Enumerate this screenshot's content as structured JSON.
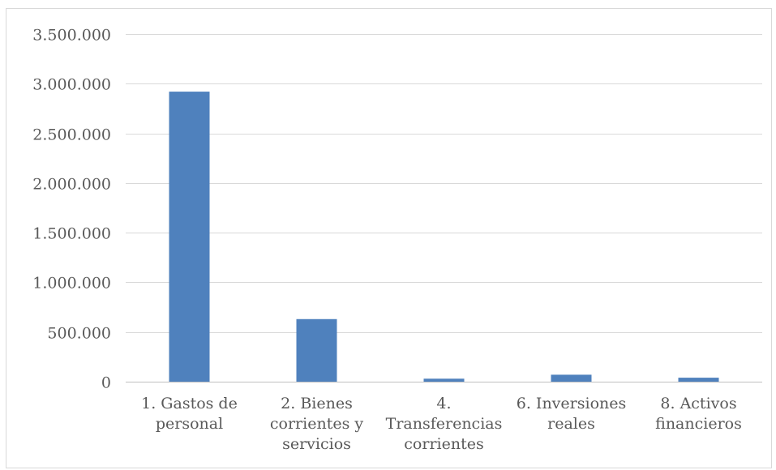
{
  "chart_data": {
    "type": "bar",
    "title": "",
    "xlabel": "",
    "ylabel": "",
    "categories": [
      "1. Gastos de personal",
      "2. Bienes corrientes y servicios",
      "4. Transferencias corrientes",
      "6. Inversiones reales",
      "8. Activos financieros"
    ],
    "category_lines": [
      [
        "1. Gastos de",
        "personal"
      ],
      [
        "2. Bienes",
        "corrientes y",
        "servicios"
      ],
      [
        "4.",
        "Transferencias",
        "corrientes"
      ],
      [
        "6. Inversiones",
        "reales"
      ],
      [
        "8. Activos",
        "financieros"
      ]
    ],
    "values": [
      2920000,
      630000,
      30000,
      70000,
      40000
    ],
    "ylim": [
      0,
      3500000
    ],
    "yticks": [
      0,
      500000,
      1000000,
      1500000,
      2000000,
      2500000,
      3000000,
      3500000
    ],
    "ytick_labels": [
      "0",
      "500.000",
      "1.000.000",
      "1.500.000",
      "2.000.000",
      "2.500.000",
      "3.000.000",
      "3.500.000"
    ],
    "grid": true,
    "legend": "none",
    "colors": {
      "bar": "#4f81bd",
      "grid": "#d9d9d9",
      "axis": "#bfbfbf",
      "text": "#595959"
    }
  }
}
